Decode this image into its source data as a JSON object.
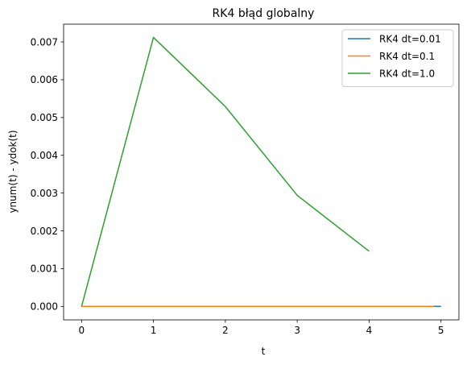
{
  "chart_data": {
    "type": "line",
    "title": "RK4 błąd globalny",
    "xlabel": "t",
    "ylabel": "ynum(t) - ydok(t)",
    "xlim": [
      -0.25,
      5.25
    ],
    "ylim": [
      -0.000356,
      0.00747
    ],
    "xticks": [
      0,
      1,
      2,
      3,
      4,
      5
    ],
    "xtick_labels": [
      "0",
      "1",
      "2",
      "3",
      "4",
      "5"
    ],
    "yticks": [
      0,
      0.001,
      0.002,
      0.003,
      0.004,
      0.005,
      0.006,
      0.007
    ],
    "ytick_labels": [
      "0.000",
      "0.001",
      "0.002",
      "0.003",
      "0.004",
      "0.005",
      "0.006",
      "0.007"
    ],
    "legend_position": "top-right",
    "grid": false,
    "series": [
      {
        "name": "RK4 dt=0.01",
        "color": "#1f77b4",
        "x": [
          0,
          5.0
        ],
        "y": [
          0,
          0
        ]
      },
      {
        "name": "RK4 dt=0.1",
        "color": "#ff7f0e",
        "x": [
          0,
          4.9
        ],
        "y": [
          0,
          0
        ]
      },
      {
        "name": "RK4 dt=1.0",
        "color": "#2ca02c",
        "x": [
          0,
          1,
          2,
          3,
          4
        ],
        "y": [
          0,
          0.00712,
          0.00529,
          0.00294,
          0.00146
        ]
      }
    ]
  }
}
